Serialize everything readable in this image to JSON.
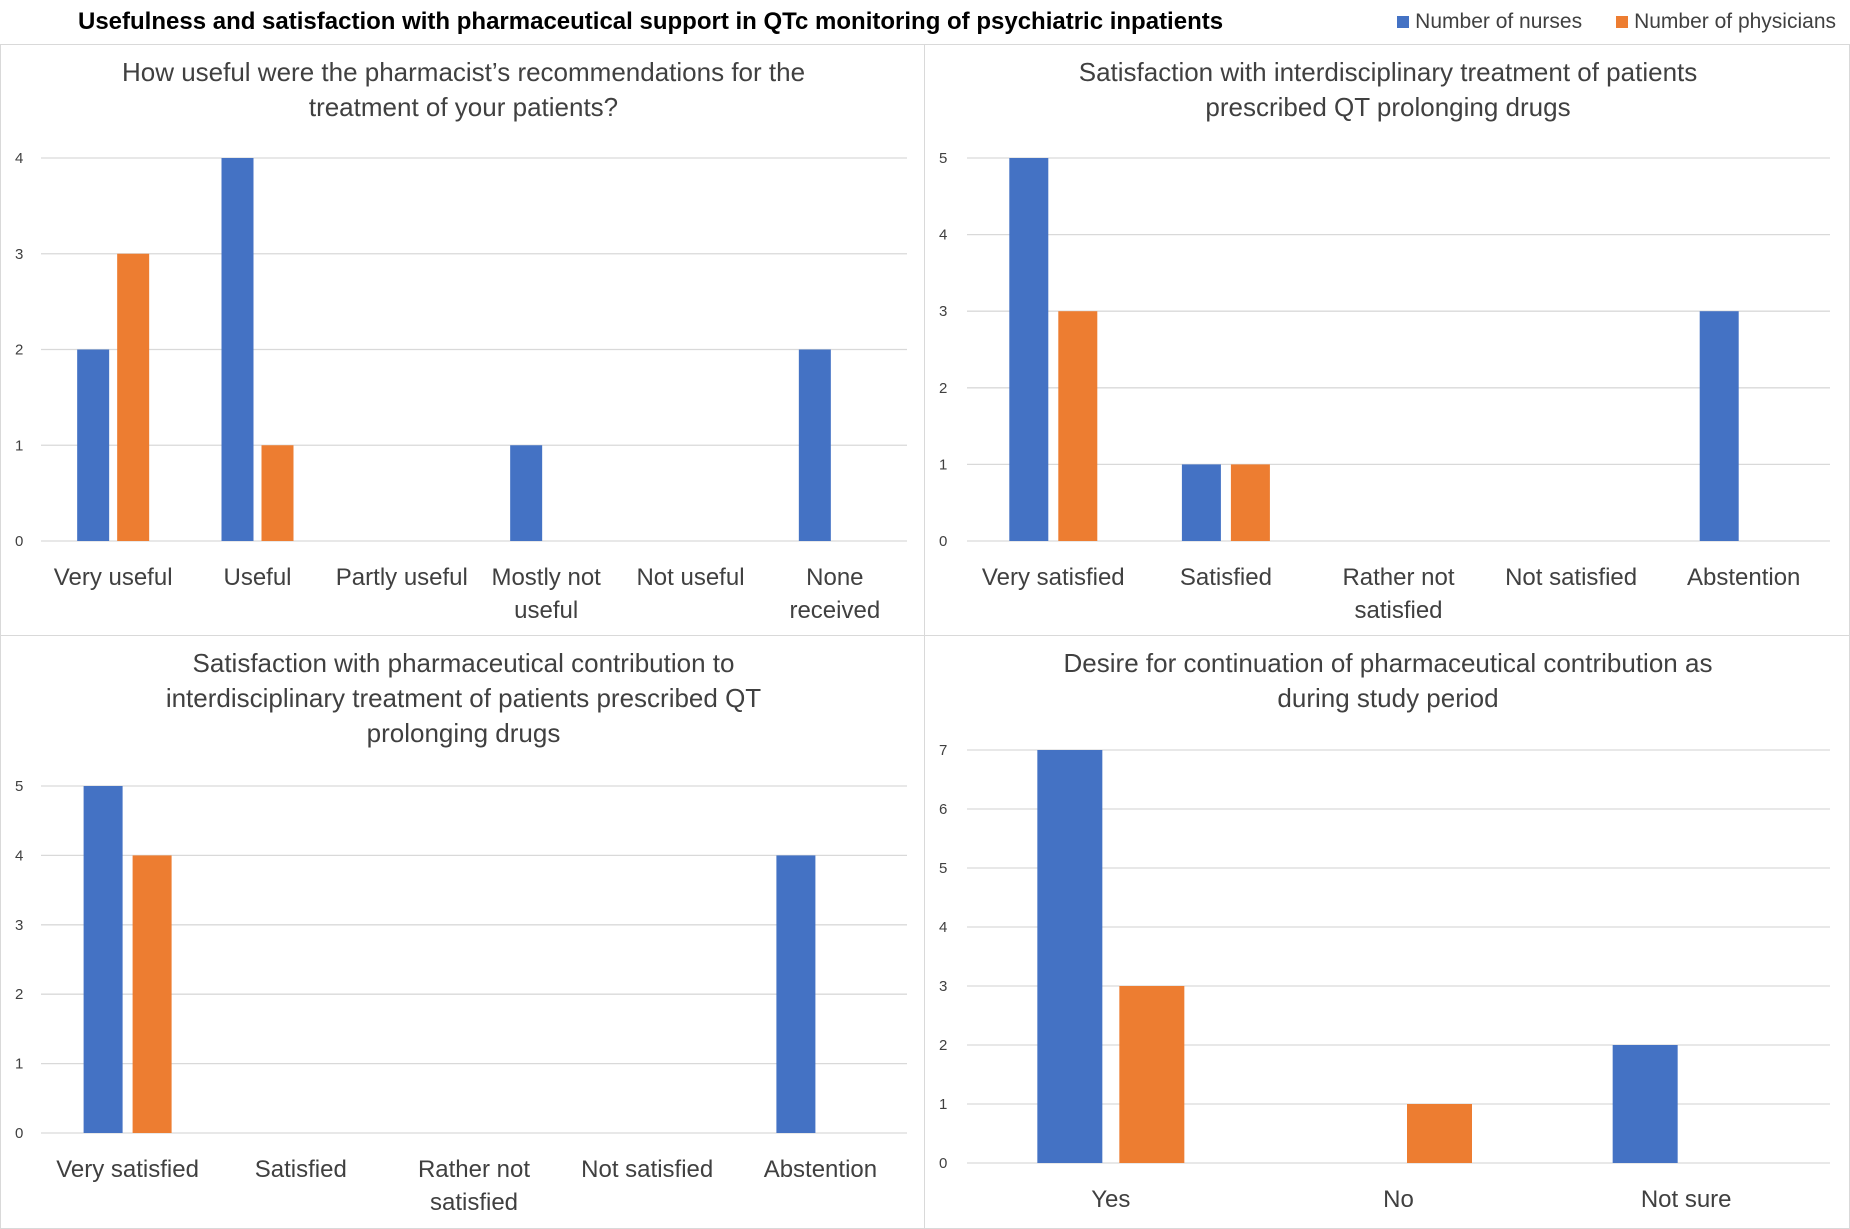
{
  "title": "Usefulness and satisfaction with pharmaceutical support in QTc monitoring of psychiatric inpatients",
  "legend": [
    {
      "label": "Number of nurses",
      "color": "#4472C4"
    },
    {
      "label": "Number of physicians",
      "color": "#ED7D31"
    }
  ],
  "chart_data": [
    {
      "type": "bar",
      "title": [
        "How useful were the pharmacist’s recommendations for the",
        "treatment of your patients?"
      ],
      "categories": [
        [
          "Very useful"
        ],
        [
          "Useful"
        ],
        [
          "Partly useful"
        ],
        [
          "Mostly not",
          "useful"
        ],
        [
          "Not useful"
        ],
        [
          "None",
          "received"
        ]
      ],
      "series": [
        {
          "name": "Number of nurses",
          "values": [
            2,
            4,
            0,
            1,
            0,
            2
          ]
        },
        {
          "name": "Number of physicians",
          "values": [
            3,
            1,
            0,
            0,
            0,
            0
          ]
        }
      ],
      "ylim": [
        0,
        4
      ],
      "yticks": [
        0,
        1,
        2,
        3,
        4
      ]
    },
    {
      "type": "bar",
      "title": [
        "Satisfaction with interdisciplinary treatment of patients",
        "prescribed QT prolonging drugs"
      ],
      "categories": [
        [
          "Very satisfied"
        ],
        [
          "Satisfied"
        ],
        [
          "Rather not",
          "satisfied"
        ],
        [
          "Not satisfied"
        ],
        [
          "Abstention"
        ]
      ],
      "series": [
        {
          "name": "Number of nurses",
          "values": [
            5,
            1,
            0,
            0,
            3
          ]
        },
        {
          "name": "Number of physicians",
          "values": [
            3,
            1,
            0,
            0,
            0
          ]
        }
      ],
      "ylim": [
        0,
        5
      ],
      "yticks": [
        0,
        1,
        2,
        3,
        4,
        5
      ]
    },
    {
      "type": "bar",
      "title": [
        "Satisfaction with pharmaceutical contribution to",
        "interdisciplinary treatment of patients prescribed QT",
        "prolonging drugs"
      ],
      "categories": [
        [
          "Very satisfied"
        ],
        [
          "Satisfied"
        ],
        [
          "Rather not",
          "satisfied"
        ],
        [
          "Not satisfied"
        ],
        [
          "Abstention"
        ]
      ],
      "series": [
        {
          "name": "Number of nurses",
          "values": [
            5,
            0,
            0,
            0,
            4
          ]
        },
        {
          "name": "Number of physicians",
          "values": [
            4,
            0,
            0,
            0,
            0
          ]
        }
      ],
      "ylim": [
        0,
        5
      ],
      "yticks": [
        0,
        1,
        2,
        3,
        4,
        5
      ]
    },
    {
      "type": "bar",
      "title": [
        "Desire for continuation of pharmaceutical contribution as",
        "during study period"
      ],
      "categories": [
        [
          "Yes"
        ],
        [
          "No"
        ],
        [
          "Not sure"
        ]
      ],
      "series": [
        {
          "name": "Number of nurses",
          "values": [
            7,
            0,
            2
          ]
        },
        {
          "name": "Number of physicians",
          "values": [
            3,
            1,
            0
          ]
        }
      ],
      "ylim": [
        0,
        7
      ],
      "yticks": [
        0,
        1,
        2,
        3,
        4,
        5,
        6,
        7
      ]
    }
  ]
}
